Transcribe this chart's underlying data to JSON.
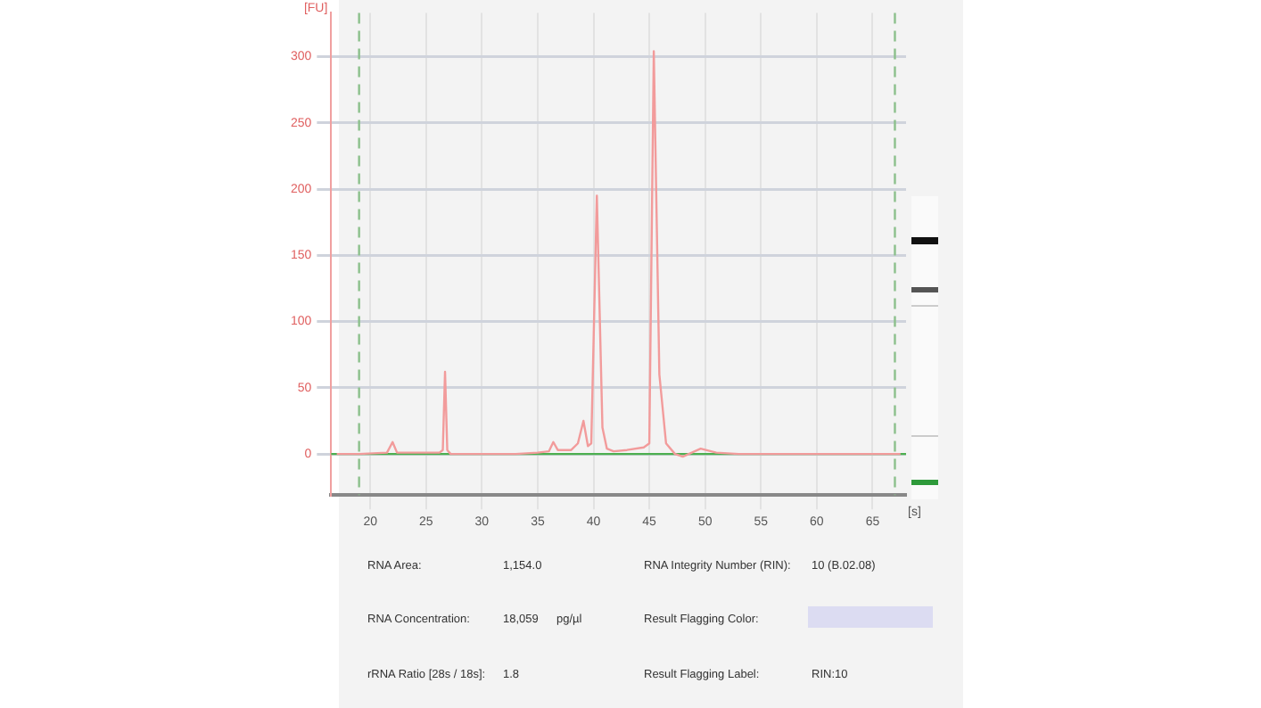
{
  "chart_data": {
    "type": "line",
    "xlabel": "[s]",
    "ylabel": "[FU]",
    "xlim": [
      16.5,
      68
    ],
    "ylim": [
      -31,
      333
    ],
    "xticks": [
      20,
      25,
      30,
      35,
      40,
      45,
      50,
      55,
      60,
      65
    ],
    "yticks": [
      0,
      50,
      100,
      150,
      200,
      250,
      300
    ],
    "grid": true,
    "marker": "none",
    "line_style": "solid",
    "series": [
      {
        "color": "#f29b9b",
        "x": [
          17,
          19,
          21.5,
          22,
          22.4,
          26.2,
          26.5,
          26.7,
          26.9,
          27.2,
          33,
          35,
          36,
          36.4,
          36.8,
          38,
          38.6,
          39.1,
          39.5,
          39.8,
          40.3,
          40.8,
          41.2,
          41.8,
          43,
          44.5,
          45,
          45.4,
          45.9,
          46.5,
          47.3,
          48,
          49.6,
          51,
          53,
          67.5
        ],
        "values": [
          0,
          0,
          1,
          9,
          1,
          1,
          3,
          62,
          3,
          0,
          0,
          1,
          2,
          9,
          3,
          3,
          8,
          25,
          6,
          8,
          195,
          20,
          4,
          2,
          3,
          5,
          8,
          304,
          60,
          8,
          0,
          -2,
          4,
          1,
          0,
          0
        ]
      }
    ],
    "ref_lines": [
      {
        "axis": "x",
        "value": 19,
        "color": "#8cc08c",
        "line_style": "dashed"
      },
      {
        "axis": "x",
        "value": 67,
        "color": "#8cc08c",
        "line_style": "dashed"
      },
      {
        "axis": "y",
        "value": 0,
        "color": "#4caf50",
        "line_style": "solid"
      }
    ],
    "annotations": [
      "RNA Area:",
      "1,154.0",
      "RNA Concentration:",
      "18,059",
      "pg/µl",
      "rRNA Ratio [28s / 18s]:",
      "1.8",
      "RNA Integrity Number (RIN):",
      "10 (B.02.08)",
      "Result Flagging Color:",
      "Result Flagging Label:",
      "RIN:10"
    ]
  }
}
